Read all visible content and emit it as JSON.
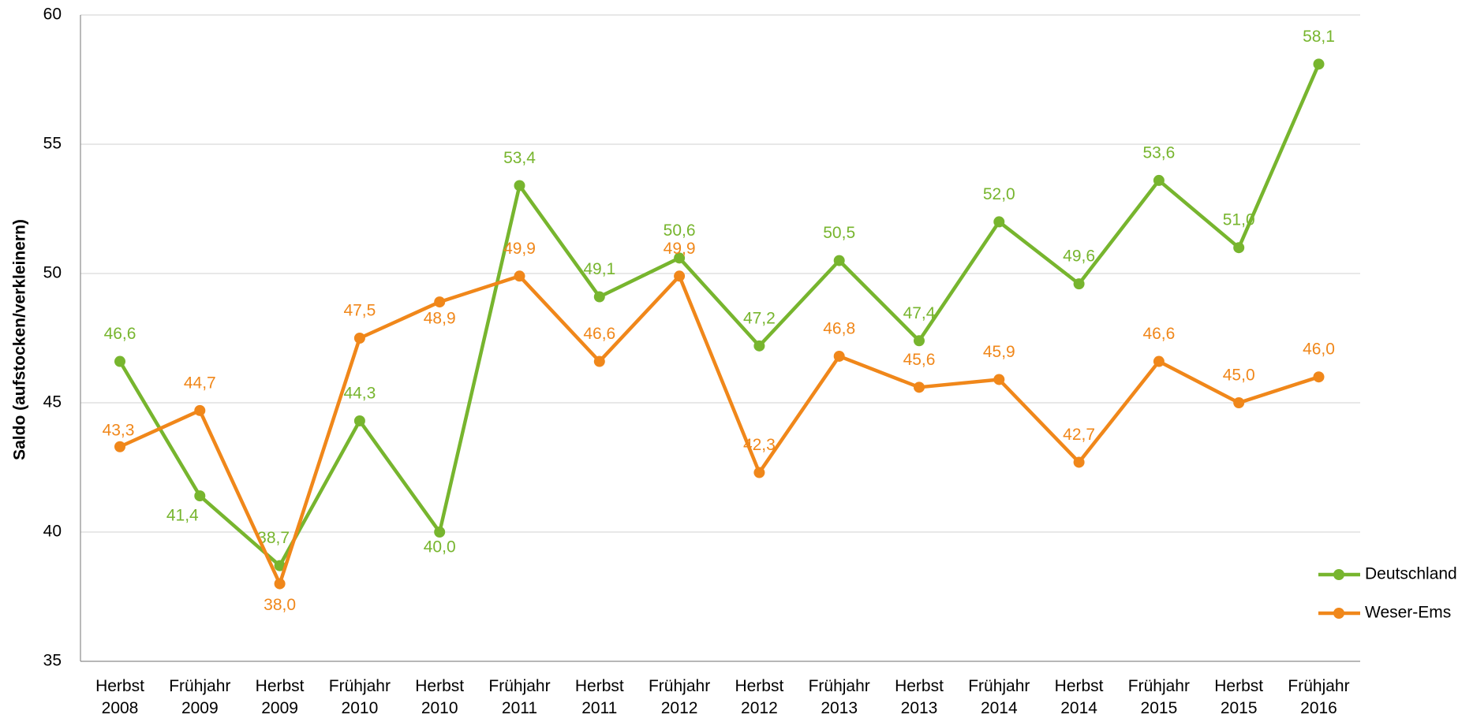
{
  "chart_data": {
    "type": "line",
    "y_label": "Saldo (aufstocken/verkleinern)",
    "categories": [
      "Herbst\n2008",
      "Frühjahr\n2009",
      "Herbst\n2009",
      "Frühjahr\n2010",
      "Herbst\n2010",
      "Frühjahr\n2011",
      "Herbst\n2011",
      "Frühjahr\n2012",
      "Herbst\n2012",
      "Frühjahr\n2013",
      "Herbst\n2013",
      "Frühjahr\n2014",
      "Herbst\n2014",
      "Frühjahr\n2015",
      "Herbst\n2015",
      "Frühjahr\n2016"
    ],
    "series": [
      {
        "name": "Deutschland",
        "color": "#77b52e",
        "values": [
          46.6,
          41.4,
          38.7,
          44.3,
          40.0,
          53.4,
          49.1,
          50.6,
          47.2,
          50.5,
          47.4,
          52.0,
          49.6,
          53.6,
          51.0,
          58.1
        ],
        "value_labels": [
          "46,6",
          "41,4",
          "38,7",
          "44,3",
          "40,0",
          "53,4",
          "49,1",
          "50,6",
          "47,2",
          "50,5",
          "47,4",
          "52,0",
          "49,6",
          "53,6",
          "51,0",
          "58,1"
        ]
      },
      {
        "name": "Weser-Ems",
        "color": "#f0871a",
        "values": [
          43.3,
          44.7,
          38.0,
          47.5,
          48.9,
          49.9,
          46.6,
          49.9,
          42.3,
          46.8,
          45.6,
          45.9,
          42.7,
          46.6,
          45.0,
          46.0
        ],
        "value_labels": [
          "43,3",
          "44,7",
          "38,0",
          "47,5",
          "48,9",
          "49,9",
          "46,6",
          "49,9",
          "42,3",
          "46,8",
          "45,6",
          "45,9",
          "42,7",
          "46,6",
          "45,0",
          "46,0"
        ]
      }
    ],
    "ylim": [
      35,
      60
    ],
    "yticks": [
      35,
      40,
      45,
      50,
      55,
      60
    ],
    "grid": true,
    "legend": "right"
  }
}
